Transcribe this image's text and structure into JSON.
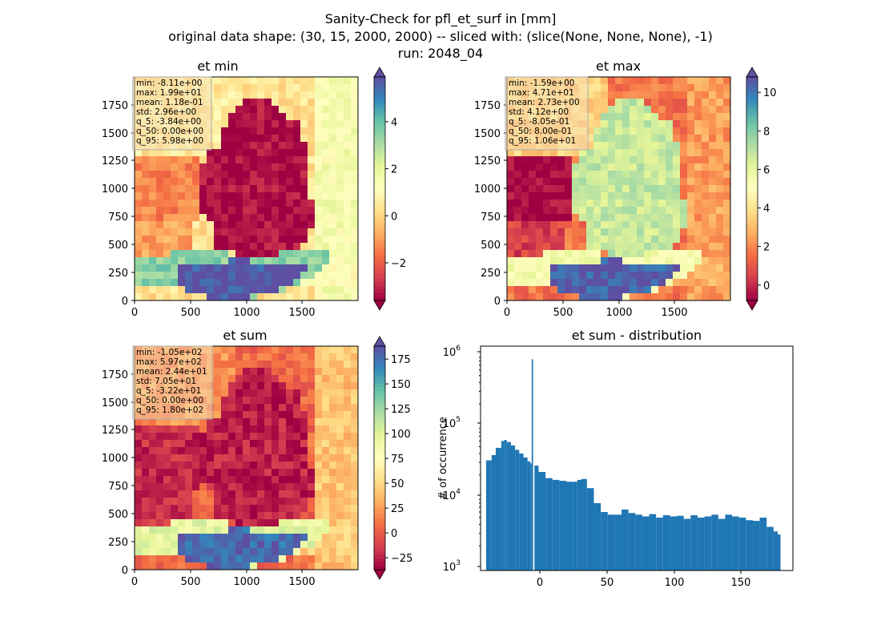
{
  "figure": {
    "suptitle": [
      "Sanity-Check for pfl_et_surf in [mm]",
      "original data shape: (30, 15, 2000, 2000) -- sliced with: (slice(None, None, None), -1)",
      "run: 2048_04"
    ]
  },
  "colors": {
    "colormap": "Spectral",
    "spectral_stops": [
      "#9e0142",
      "#d53e4f",
      "#f46d43",
      "#fdae61",
      "#fee08b",
      "#ffffbf",
      "#e6f598",
      "#abdda4",
      "#66c2a5",
      "#3288bd",
      "#5e4fa2"
    ],
    "histogram_bar": "#1f77b4"
  },
  "maps": [
    {
      "title": "et min",
      "x_ticks": [
        "0",
        "500",
        "1000",
        "1500"
      ],
      "y_ticks": [
        "0",
        "250",
        "500",
        "750",
        "1000",
        "1250",
        "1500",
        "1750"
      ],
      "colorbar": {
        "ticks": [
          "4",
          "2",
          "0",
          "−2"
        ],
        "tick_values": [
          4,
          2,
          0,
          -2
        ],
        "vmin": -3.6,
        "vmax": 5.9,
        "extend": "both"
      },
      "stats": [
        "min: -8.11e+00",
        "max: 1.99e+01",
        "mean: 1.18e-01",
        "std: 2.96e+00",
        "q_5: -3.84e+00",
        "q_50: 0.00e+00",
        "q_95: 5.98e+00"
      ],
      "region_values": {
        "background": 0.3,
        "north_west": -1.4,
        "south_west": -0.9,
        "north_sea": 0.5,
        "east": 1.5,
        "germany": -3.4,
        "alps": 5.8,
        "alps_foreland": 3.5,
        "south_band": 1.2
      }
    },
    {
      "title": "et max",
      "x_ticks": [
        "0",
        "500",
        "1000",
        "1500"
      ],
      "y_ticks": [
        "0",
        "250",
        "500",
        "750",
        "1000",
        "1250",
        "1500",
        "1750"
      ],
      "colorbar": {
        "ticks": [
          "10",
          "8",
          "6",
          "4",
          "2",
          "0"
        ],
        "tick_values": [
          10,
          8,
          6,
          4,
          2,
          0
        ],
        "vmin": -0.8,
        "vmax": 10.8,
        "extend": "both"
      },
      "stats": [
        "min: -1.59e+00",
        "max: 4.71e+01",
        "mean: 2.73e+00",
        "std: 4.12e+00",
        "q_5: -8.05e-01",
        "q_50: 8.00e-01",
        "q_95: 1.06e+01"
      ],
      "region_values": {
        "background": 1.6,
        "north_west": -0.7,
        "south_west": 0.5,
        "north_sea": 3.5,
        "east": 2.4,
        "germany": 6.8,
        "alps": 10.5,
        "alps_foreland": 5.5,
        "south_band": 2.8
      }
    },
    {
      "title": "et sum",
      "x_ticks": [
        "0",
        "500",
        "1000",
        "1500"
      ],
      "y_ticks": [
        "0",
        "250",
        "500",
        "750",
        "1000",
        "1250",
        "1500",
        "1750"
      ],
      "colorbar": {
        "ticks": [
          "175",
          "150",
          "125",
          "100",
          "75",
          "50",
          "25",
          "0",
          "−25"
        ],
        "tick_values": [
          175,
          150,
          125,
          100,
          75,
          50,
          25,
          0,
          -25
        ],
        "vmin": -37,
        "vmax": 188,
        "extend": "both"
      },
      "stats": [
        "min: -1.05e+02",
        "max: 5.97e+02",
        "mean: 2.44e+01",
        "std: 7.05e+01",
        "q_5: -3.22e+01",
        "q_50: 0.00e+00",
        "q_95: 1.80e+02"
      ],
      "region_values": {
        "background": 6,
        "north_west": -22,
        "south_west": -18,
        "north_sea": 20,
        "east": 40,
        "germany": -26,
        "alps": 178,
        "alps_foreland": 95,
        "south_band": 45
      }
    }
  ],
  "histogram": {
    "title": "et sum - distribution",
    "ylabel": "# of occurrence",
    "x_ticks": [
      "0",
      "50",
      "100",
      "150"
    ],
    "y_tick_labels": [
      {
        "base": "10",
        "exp": "3"
      },
      {
        "base": "10",
        "exp": "4"
      },
      {
        "base": "10",
        "exp": "5"
      },
      {
        "base": "10",
        "exp": "6"
      }
    ]
  },
  "chart_data": [
    {
      "type": "heatmap",
      "title": "et min",
      "x_range": [
        0,
        2000
      ],
      "y_range": [
        0,
        2000
      ],
      "colorbar_range": [
        -3.6,
        5.9
      ],
      "colormap": "Spectral",
      "annotation": [
        "min: -8.11e+00",
        "max: 1.99e+01",
        "mean: 1.18e-01",
        "std: 2.96e+00",
        "q_5: -3.84e+00",
        "q_50: 0.00e+00",
        "q_95: 5.98e+00"
      ]
    },
    {
      "type": "heatmap",
      "title": "et max",
      "x_range": [
        0,
        2000
      ],
      "y_range": [
        0,
        2000
      ],
      "colorbar_range": [
        -0.8,
        10.8
      ],
      "colormap": "Spectral",
      "annotation": [
        "min: -1.59e+00",
        "max: 4.71e+01",
        "mean: 2.73e+00",
        "std: 4.12e+00",
        "q_5: -8.05e-01",
        "q_50: 8.00e-01",
        "q_95: 1.06e+01"
      ]
    },
    {
      "type": "heatmap",
      "title": "et sum",
      "x_range": [
        0,
        2000
      ],
      "y_range": [
        0,
        2000
      ],
      "colorbar_range": [
        -37,
        188
      ],
      "colormap": "Spectral",
      "annotation": [
        "min: -1.05e+02",
        "max: 5.97e+02",
        "mean: 2.44e+01",
        "std: 7.05e+01",
        "q_5: -3.22e+01",
        "q_50: 0.00e+00",
        "q_95: 1.80e+02"
      ]
    },
    {
      "type": "bar",
      "title": "et sum - distribution",
      "xlabel": "",
      "ylabel": "# of occurrence",
      "y_scale": "log",
      "xlim": [
        -37,
        189
      ],
      "ylim": [
        900,
        1300000
      ],
      "bins_x": [
        -33,
        -29,
        -26,
        -22,
        -20,
        -18,
        -15,
        -12,
        -9,
        -6,
        -3,
        -1,
        0,
        2,
        5,
        10,
        15,
        20,
        25,
        30,
        33,
        36,
        40,
        45,
        50,
        55,
        60,
        65,
        70,
        75,
        80,
        85,
        90,
        95,
        100,
        105,
        110,
        115,
        120,
        125,
        130,
        135,
        140,
        145,
        150,
        155,
        160,
        165,
        170,
        175,
        178
      ],
      "counts": [
        32000,
        38000,
        48000,
        60000,
        62000,
        58000,
        52000,
        45000,
        40000,
        35000,
        31000,
        29000,
        850000,
        27000,
        22000,
        18000,
        17000,
        16500,
        16000,
        16000,
        17000,
        17500,
        13000,
        8000,
        6000,
        5500,
        5500,
        6500,
        5800,
        5500,
        5200,
        5600,
        5000,
        5400,
        5200,
        5300,
        4800,
        5400,
        5000,
        5200,
        5500,
        4800,
        5500,
        5200,
        5000,
        4600,
        4500,
        5000,
        3700,
        3200,
        2900
      ]
    }
  ]
}
